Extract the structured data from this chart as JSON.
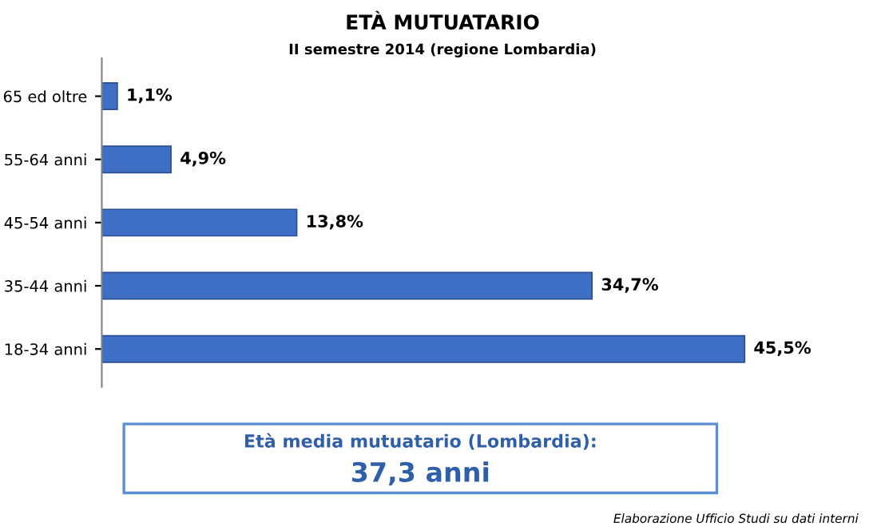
{
  "chart_data": {
    "type": "bar",
    "orientation": "horizontal",
    "title": "ETÀ MUTUATARIO",
    "subtitle": "II semestre 2014 (regione Lombardia)",
    "categories": [
      "65 ed oltre",
      "55-64 anni",
      "45-54 anni",
      "35-44 anni",
      "18-34 anni"
    ],
    "values": [
      1.1,
      4.9,
      13.8,
      34.7,
      45.5
    ],
    "value_labels": [
      "1,1%",
      "4,9%",
      "13,8%",
      "34,7%",
      "45,5%"
    ],
    "color": "#3f6fc4",
    "annotations": [
      "Età media mutuatario (Lombardia):",
      "37,3 anni",
      "Elaborazione Ufficio Studi su dati interni"
    ]
  }
}
